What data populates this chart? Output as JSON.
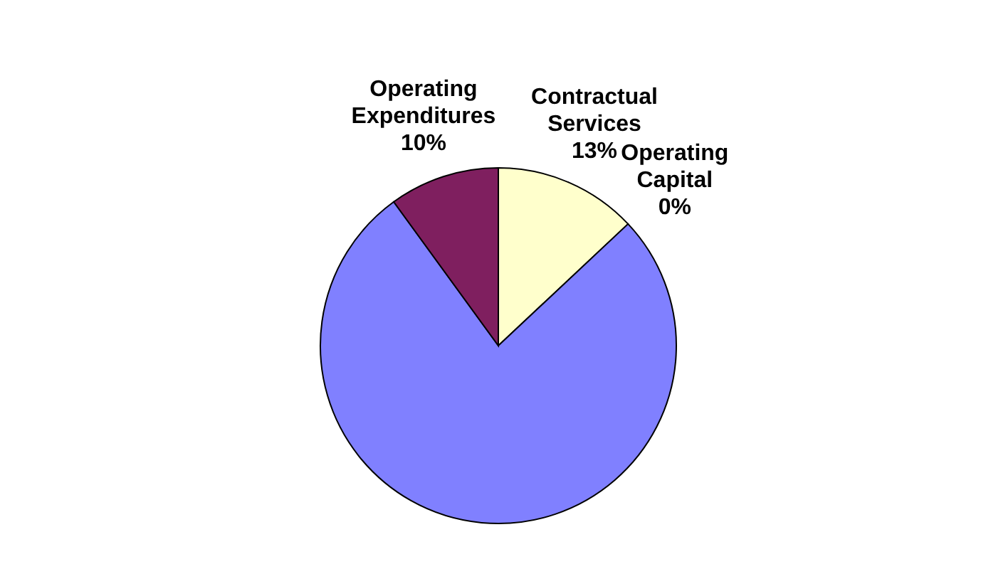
{
  "chart_data": {
    "type": "pie",
    "categories": [
      "Contractual Services",
      "Operating Capital",
      null,
      "Operating Expenditures"
    ],
    "values": [
      13,
      0,
      77,
      10
    ],
    "colors": [
      "#ffffcc",
      "#ff8080",
      "#8080ff",
      "#7f1f5f"
    ],
    "value_labels": [
      "13%",
      "0%",
      null,
      "10%"
    ]
  }
}
